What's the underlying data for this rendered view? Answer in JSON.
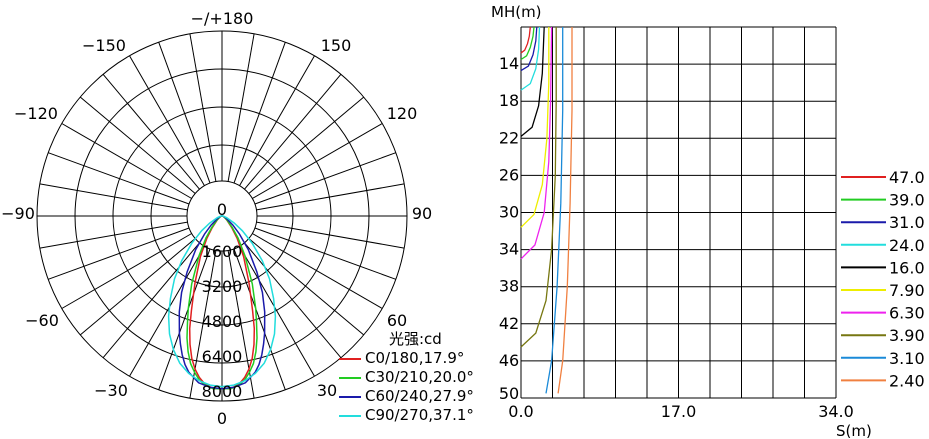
{
  "chart_data": [
    {
      "type": "polar-line",
      "unit_label": "光强:cd",
      "angle_labels": {
        "top": "−/+180",
        "bottom": "0",
        "upper_left": "−150",
        "upper_right": "150",
        "mid_left": "−120",
        "mid_right": "120",
        "left": "−90",
        "right": "90",
        "lower_left": "−60",
        "lower_right": "60",
        "bottom_left": "−30",
        "bottom_right": "30"
      },
      "radial_ticks": [
        "0",
        "1600",
        "3200",
        "4800",
        "6400",
        "8000"
      ],
      "r_max": 8000,
      "series": [
        {
          "name": "C0/180,17.9°",
          "color": "#e02020",
          "angles": [
            0,
            3,
            6,
            8,
            10,
            12,
            14,
            16,
            17.9,
            22,
            28,
            34,
            40,
            50,
            60,
            80,
            100,
            140,
            180
          ],
          "values": [
            7900,
            7900,
            7700,
            7450,
            7100,
            6650,
            6050,
            5350,
            4550,
            3300,
            2100,
            1250,
            700,
            280,
            120,
            40,
            15,
            5,
            3
          ]
        },
        {
          "name": "C30/210,20.0°",
          "color": "#22cc22",
          "angles": [
            0,
            3,
            6,
            8,
            10,
            12,
            14,
            16,
            18,
            20,
            24,
            30,
            36,
            42,
            50,
            60,
            80,
            100,
            140,
            180
          ],
          "values": [
            7900,
            7900,
            7750,
            7550,
            7250,
            6900,
            6400,
            5800,
            5100,
            4500,
            3400,
            2100,
            1250,
            700,
            330,
            140,
            45,
            15,
            5,
            3
          ]
        },
        {
          "name": "C60/240,27.9°",
          "color": "#1a1aaa",
          "angles": [
            0,
            4,
            8,
            12,
            14,
            16,
            18,
            20,
            24,
            27.9,
            32,
            38,
            44,
            50,
            60,
            80,
            100,
            140,
            180
          ],
          "values": [
            7900,
            7850,
            7700,
            7300,
            7000,
            6600,
            6150,
            5700,
            4800,
            3950,
            3000,
            1950,
            1150,
            650,
            250,
            60,
            20,
            5,
            3
          ]
        },
        {
          "name": "C90/270,37.1°",
          "color": "#22dddd",
          "angles": [
            0,
            4,
            8,
            12,
            16,
            20,
            24,
            28,
            32,
            37.1,
            42,
            48,
            54,
            60,
            70,
            80,
            100,
            140,
            180
          ],
          "values": [
            7800,
            7750,
            7600,
            7350,
            7000,
            6500,
            5900,
            5200,
            4450,
            3600,
            2750,
            1850,
            1150,
            650,
            230,
            80,
            20,
            5,
            3
          ]
        }
      ]
    },
    {
      "type": "line",
      "ylabel": "MH(m)",
      "xlabel": "S(m)",
      "x_ticks": [
        "0.0",
        "17.0",
        "34.0"
      ],
      "xlim": [
        0,
        34
      ],
      "y_ticks": [
        "14",
        "18",
        "22",
        "26",
        "30",
        "34",
        "38",
        "42",
        "46",
        "50"
      ],
      "ylim": [
        10,
        50
      ],
      "grid": true,
      "legend_position": "right",
      "series": [
        {
          "name": "47.0",
          "color": "#e02020",
          "x": [
            0.0,
            0.4,
            0.7,
            0.9,
            1.0
          ],
          "y": [
            12.8,
            12.5,
            11.8,
            11.0,
            10.0
          ]
        },
        {
          "name": "39.0",
          "color": "#22cc22",
          "x": [
            0.0,
            0.6,
            1.0,
            1.3,
            1.4
          ],
          "y": [
            13.5,
            13.1,
            12.2,
            11.0,
            10.0
          ]
        },
        {
          "name": "31.0",
          "color": "#1a1aaa",
          "x": [
            0.0,
            0.8,
            1.3,
            1.6,
            1.7
          ],
          "y": [
            14.7,
            14.2,
            13.0,
            11.5,
            10.0
          ]
        },
        {
          "name": "24.0",
          "color": "#22dddd",
          "x": [
            0.0,
            1.0,
            1.6,
            1.9,
            2.0
          ],
          "y": [
            16.8,
            16.1,
            14.5,
            12.4,
            10.0
          ]
        },
        {
          "name": "16.0",
          "color": "#000000",
          "x": [
            0.0,
            1.2,
            1.9,
            2.3,
            2.5
          ],
          "y": [
            21.8,
            20.8,
            18.5,
            15.0,
            10.0
          ]
        },
        {
          "name": "7.90",
          "color": "#eeee00",
          "x": [
            0.0,
            1.4,
            2.3,
            2.8,
            3.0,
            3.0
          ],
          "y": [
            31.6,
            30.2,
            27.0,
            22.0,
            16.0,
            10.0
          ]
        },
        {
          "name": "6.30",
          "color": "#ee22ee",
          "x": [
            0.0,
            1.5,
            2.5,
            3.0,
            3.2,
            3.3
          ],
          "y": [
            35.0,
            33.5,
            30.0,
            24.5,
            18.0,
            10.0
          ]
        },
        {
          "name": "3.90",
          "color": "#777711",
          "x": [
            0.0,
            1.6,
            2.7,
            3.3,
            3.7,
            3.8,
            3.8
          ],
          "y": [
            44.5,
            43.0,
            39.5,
            34.0,
            26.0,
            18.0,
            10.0
          ]
        },
        {
          "name": "3.10",
          "color": "#1a8ad8",
          "x": [
            2.7,
            3.3,
            3.9,
            4.3,
            4.5,
            4.5
          ],
          "y": [
            49.5,
            46.0,
            38.0,
            29.0,
            19.0,
            10.0
          ]
        },
        {
          "name": "2.40",
          "color": "#f08040",
          "x": [
            4.0,
            4.5,
            5.0,
            5.3,
            5.5,
            5.5
          ],
          "y": [
            49.5,
            46.0,
            38.0,
            29.0,
            19.0,
            10.0
          ]
        }
      ]
    }
  ]
}
